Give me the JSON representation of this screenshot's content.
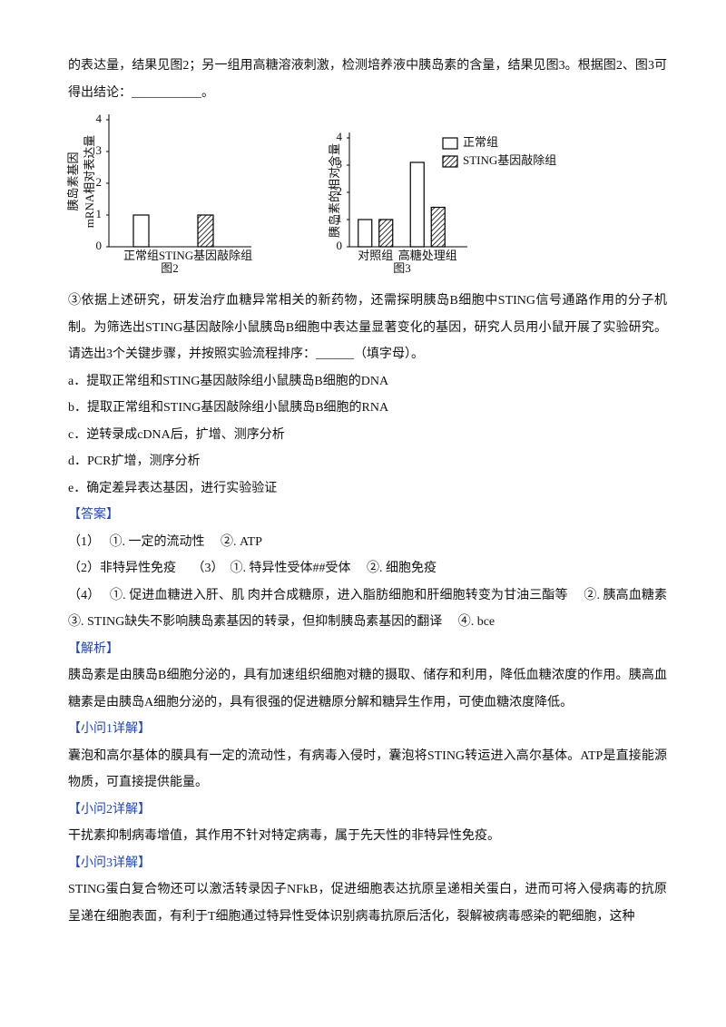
{
  "intro_text": "的表达量，结果见图2；另一组用高糖溶液刺激，检测培养液中胰岛素的含量，结果见图3。根据图2、图3可得出结论：___________。",
  "question_text": "③依据上述研究，研发治疗血糖异常相关的新药物，还需探明胰岛B细胞中STING信号通路作用的分子机制。为筛选出STING基因敲除小鼠胰岛B细胞中表达量显著变化的基因，研究人员用小鼠开展了实验研究。请选出3个关键步骤，并按照实验流程排序：______（填字母）。",
  "options": [
    "a．提取正常组和STING基因敲除组小鼠胰岛B细胞的DNA",
    "b．提取正常组和STING基因敲除组小鼠胰岛B细胞的RNA",
    "c．逆转录成cDNA后，扩增、测序分析",
    "d．PCR扩增，测序分析",
    "e．确定差异表达基因，进行实验验证"
  ],
  "answer_heading": "【答案】",
  "answer_lines": [
    "（1）　 ①. 一定的流动性　 ②. ATP",
    "（2）非特异性免疫　 （3）　①. 特异性受体##受体　 ②. 细胞免疫",
    "（4）　 ①. 促进血糖进入肝、肌 肉并合成糖原，进入脂肪细胞和肝细胞转变为甘油三酯等　 ②. 胰高血糖素　 ③. STING缺失不影响胰岛素基因的转录，但抑制胰岛素基因的翻译　 ④. bce"
  ],
  "analysis_heading": "【解析】",
  "analysis_text": "胰岛素是由胰岛B细胞分泌的，具有加速组织细胞对糖的摄取、储存和利用，降低血糖浓度的作用。胰高血糖素是由胰岛A细胞分泌的，具有很强的促进糖原分解和糖异生作用，可使血糖浓度降低。",
  "sections": [
    {
      "heading": "【小问1详解】",
      "text": "囊泡和高尔基体的膜具有一定的流动性，有病毒入侵时，囊泡将STING转运进入高尔基体。ATP是直接能源物质，可直接提供能量。"
    },
    {
      "heading": "【小问2详解】",
      "text": "干扰素抑制病毒增值，其作用不针对特定病毒，属于先天性的非特异性免疫。"
    },
    {
      "heading": "【小问3详解】",
      "text": "STING蛋白复合物还可以激活转录因子NFkB，促进细胞表达抗原呈递相关蛋白，进而可将入侵病毒的抗原呈递在细胞表面，有利于T细胞通过特异性受体识别病毒抗原后活化，裂解被病毒感染的靶细胞，这种"
    }
  ],
  "chart_data": [
    {
      "type": "bar",
      "caption": "图2",
      "ylabel": [
        "胰岛素基因",
        "mRNA相对表达量"
      ],
      "categories": [
        "正常组",
        "STING基因敲除组"
      ],
      "values": [
        1,
        1
      ],
      "bar_styles": [
        "plain",
        "hatched"
      ],
      "color": "#000000",
      "ylim": [
        0,
        4
      ],
      "yticks": [
        0,
        1,
        2,
        3,
        4
      ]
    },
    {
      "type": "bar",
      "caption": "图3",
      "ylabel": [
        "胰岛素的相对含量"
      ],
      "categories": [
        "对照组",
        "高糖处理组"
      ],
      "series": [
        {
          "name": "正常组",
          "style": "plain",
          "color": "#000000",
          "values": [
            1,
            3.1
          ]
        },
        {
          "name": "STING基因敲除组",
          "style": "hatched",
          "color": "#000000",
          "values": [
            1,
            1.45
          ]
        }
      ],
      "legend": "upper right",
      "ylim": [
        0,
        4
      ],
      "yticks": [
        0,
        1,
        2,
        3,
        4
      ]
    }
  ]
}
